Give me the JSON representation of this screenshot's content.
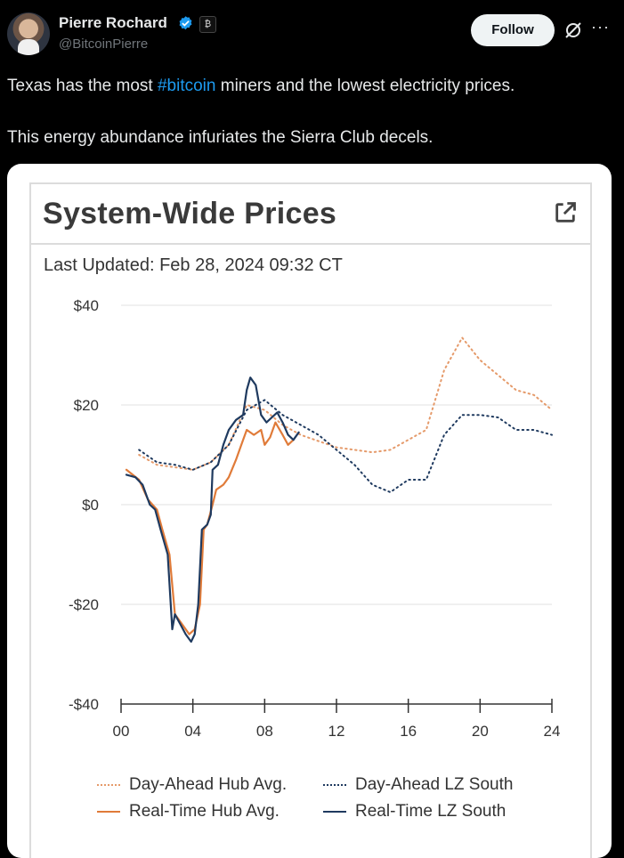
{
  "post": {
    "author_name": "Pierre Rochard",
    "author_handle": "@BitcoinPierre",
    "follow_label": "Follow",
    "more_label": "···",
    "text_line1_before": "Texas has the most ",
    "text_line1_hashtag": "#bitcoin",
    "text_line1_after": " miners and the lowest electricity prices.",
    "text_line2": "This energy abundance infuriates the Sierra Club decels.",
    "affiliate_badge": "₿"
  },
  "card": {
    "title": "System-Wide Prices",
    "last_updated": "Last Updated: Feb 28, 2024 09:32 CT"
  },
  "chart_data": {
    "type": "line",
    "title": "System-Wide Prices",
    "xlabel": "",
    "ylabel": "",
    "xlim": [
      0,
      24
    ],
    "ylim": [
      -40,
      40
    ],
    "x_ticks": [
      "00",
      "04",
      "08",
      "12",
      "16",
      "20",
      "24"
    ],
    "y_ticks": [
      "$40",
      "$20",
      "$0",
      "-$20",
      "-$40"
    ],
    "legend_position": "bottom",
    "grid": true,
    "series": [
      {
        "name": "Day-Ahead Hub Avg.",
        "color": "#e59a6a",
        "style": "dotted",
        "points": [
          [
            1,
            10
          ],
          [
            2,
            8
          ],
          [
            3,
            7.5
          ],
          [
            4,
            7
          ],
          [
            5,
            8.5
          ],
          [
            6,
            12
          ],
          [
            7,
            20
          ],
          [
            8,
            19
          ],
          [
            9,
            16
          ],
          [
            10,
            14
          ],
          [
            12,
            11.5
          ],
          [
            14,
            10.5
          ],
          [
            15,
            11
          ],
          [
            16,
            13
          ],
          [
            17,
            15
          ],
          [
            18,
            27
          ],
          [
            19,
            33.5
          ],
          [
            20,
            29
          ],
          [
            21,
            26
          ],
          [
            22,
            23
          ],
          [
            23,
            22
          ],
          [
            24,
            19
          ]
        ]
      },
      {
        "name": "Day-Ahead LZ South",
        "color": "#1f3a5f",
        "style": "dotted",
        "points": [
          [
            1,
            11
          ],
          [
            2,
            8.5
          ],
          [
            3,
            8
          ],
          [
            4,
            7
          ],
          [
            5,
            8.5
          ],
          [
            6,
            12
          ],
          [
            7,
            19
          ],
          [
            8,
            21
          ],
          [
            9,
            18
          ],
          [
            10,
            16
          ],
          [
            11,
            14
          ],
          [
            12,
            11
          ],
          [
            13,
            8
          ],
          [
            14,
            4
          ],
          [
            15,
            2.5
          ],
          [
            16,
            5
          ],
          [
            17,
            5
          ],
          [
            18,
            14
          ],
          [
            19,
            18
          ],
          [
            20,
            18
          ],
          [
            21,
            17.5
          ],
          [
            22,
            15
          ],
          [
            23,
            15
          ],
          [
            24,
            14
          ]
        ]
      },
      {
        "name": "Real-Time Hub Avg.",
        "color": "#e07b39",
        "style": "solid",
        "points": [
          [
            0.3,
            7
          ],
          [
            1,
            5
          ],
          [
            1.5,
            1
          ],
          [
            2,
            -1
          ],
          [
            2.3,
            -5
          ],
          [
            2.7,
            -10
          ],
          [
            3,
            -22
          ],
          [
            3.4,
            -24
          ],
          [
            3.8,
            -26
          ],
          [
            4.1,
            -25
          ],
          [
            4.4,
            -20
          ],
          [
            4.6,
            -5
          ],
          [
            4.8,
            -4
          ],
          [
            5.1,
            0
          ],
          [
            5.3,
            3
          ],
          [
            5.7,
            4
          ],
          [
            6,
            5.5
          ],
          [
            6.4,
            9
          ],
          [
            6.8,
            13
          ],
          [
            7,
            15
          ],
          [
            7.4,
            14
          ],
          [
            7.8,
            15
          ],
          [
            8,
            12
          ],
          [
            8.3,
            13.5
          ],
          [
            8.6,
            16.5
          ],
          [
            9,
            14
          ],
          [
            9.3,
            12
          ],
          [
            9.6,
            13
          ]
        ]
      },
      {
        "name": "Real-Time LZ South",
        "color": "#1f3a5f",
        "style": "solid",
        "points": [
          [
            0.3,
            6
          ],
          [
            0.8,
            5.5
          ],
          [
            1.2,
            4
          ],
          [
            1.6,
            0
          ],
          [
            1.9,
            -1
          ],
          [
            2.2,
            -5
          ],
          [
            2.6,
            -10
          ],
          [
            2.85,
            -25
          ],
          [
            3,
            -22
          ],
          [
            3.3,
            -24
          ],
          [
            3.6,
            -26
          ],
          [
            3.9,
            -27.5
          ],
          [
            4.1,
            -26
          ],
          [
            4.3,
            -20
          ],
          [
            4.5,
            -5
          ],
          [
            4.8,
            -4
          ],
          [
            5,
            -2
          ],
          [
            5.1,
            7
          ],
          [
            5.4,
            8
          ],
          [
            5.7,
            12
          ],
          [
            6,
            15
          ],
          [
            6.4,
            17
          ],
          [
            6.8,
            18
          ],
          [
            7,
            23
          ],
          [
            7.2,
            25.5
          ],
          [
            7.5,
            24
          ],
          [
            7.8,
            18
          ],
          [
            8.1,
            16.5
          ],
          [
            8.4,
            17.5
          ],
          [
            8.7,
            18.5
          ],
          [
            9,
            16.5
          ],
          [
            9.3,
            14
          ],
          [
            9.6,
            13
          ],
          [
            9.9,
            14.5
          ]
        ]
      }
    ]
  }
}
